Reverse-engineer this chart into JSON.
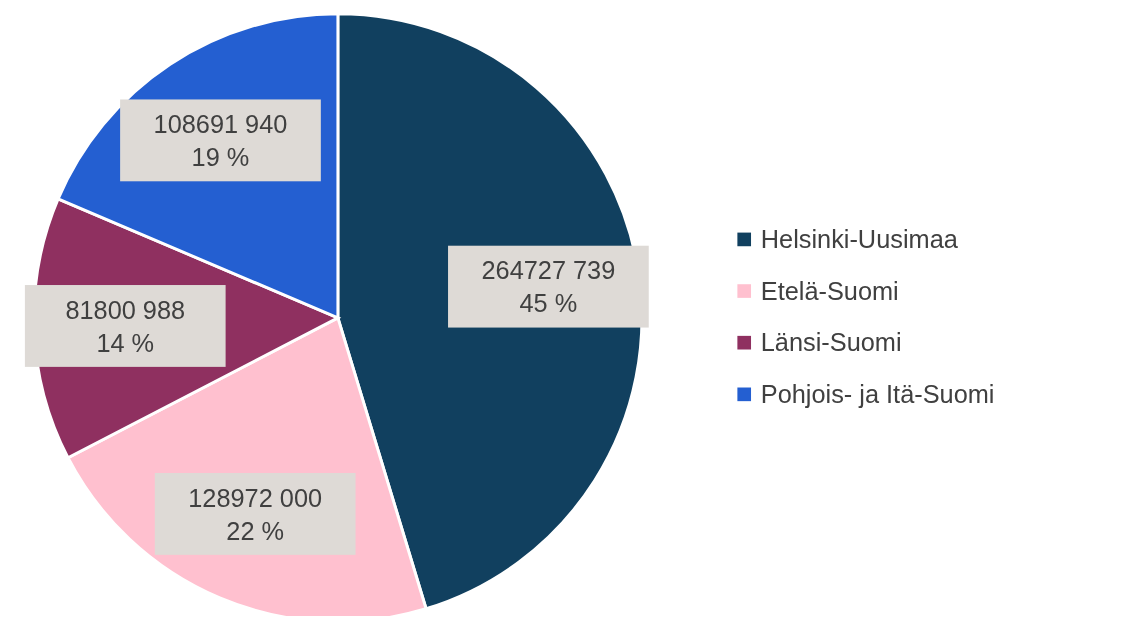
{
  "chart_data": {
    "type": "pie",
    "categories": [
      "Helsinki-Uusimaa",
      "Etelä-Suomi",
      "Länsi-Suomi",
      "Pohjois- ja Itä-Suomi"
    ],
    "values": [
      264727739,
      128972000,
      81800988,
      108691940
    ],
    "colors": [
      "#11405f",
      "#ffc0cf",
      "#8f3060",
      "#245fd1"
    ],
    "value_labels": [
      "264727 739\n45 %",
      "128972 000\n22 %",
      "81800 988\n14 %",
      "108691 940\n19 %"
    ],
    "legend": "right"
  }
}
